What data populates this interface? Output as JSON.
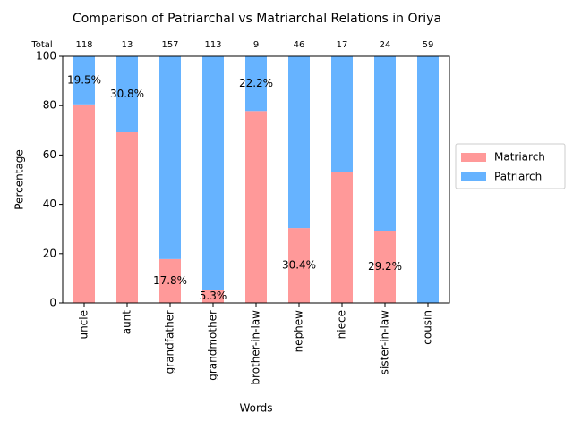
{
  "chart_data": {
    "type": "stacked_bar",
    "title": "Comparison of Patriarchal vs Matriarchal Relations in Oriya",
    "x_label": "Words",
    "y_label": "Percentage",
    "categories": [
      "uncle",
      "aunt",
      "grandfather",
      "grandmother",
      "brother-in-law",
      "nephew",
      "niece",
      "sister-in-law",
      "cousin"
    ],
    "series": [
      {
        "name": "Matriarch",
        "color": "#ff9999",
        "values": [
          80.5,
          69.2,
          17.8,
          5.3,
          77.8,
          30.4,
          52.9,
          29.2,
          0
        ],
        "value_labels": [
          null,
          null,
          "17.8%",
          "5.3%",
          null,
          "30.4%",
          null,
          "29.2%",
          null
        ]
      },
      {
        "name": "Patriarch",
        "color": "#66b3ff",
        "values": [
          19.5,
          30.8,
          82.2,
          94.7,
          22.2,
          69.6,
          47.1,
          70.8,
          100
        ],
        "value_labels": [
          "19.5%",
          "30.8%",
          null,
          null,
          "22.2%",
          null,
          null,
          null,
          null
        ]
      }
    ],
    "totals": {
      "label": "Total",
      "values": [
        118,
        13,
        157,
        113,
        9,
        46,
        17,
        24,
        59
      ]
    },
    "ylim": [
      0,
      100
    ],
    "yticks": [
      0,
      20,
      40,
      60,
      80,
      100
    ],
    "legend": "right"
  }
}
